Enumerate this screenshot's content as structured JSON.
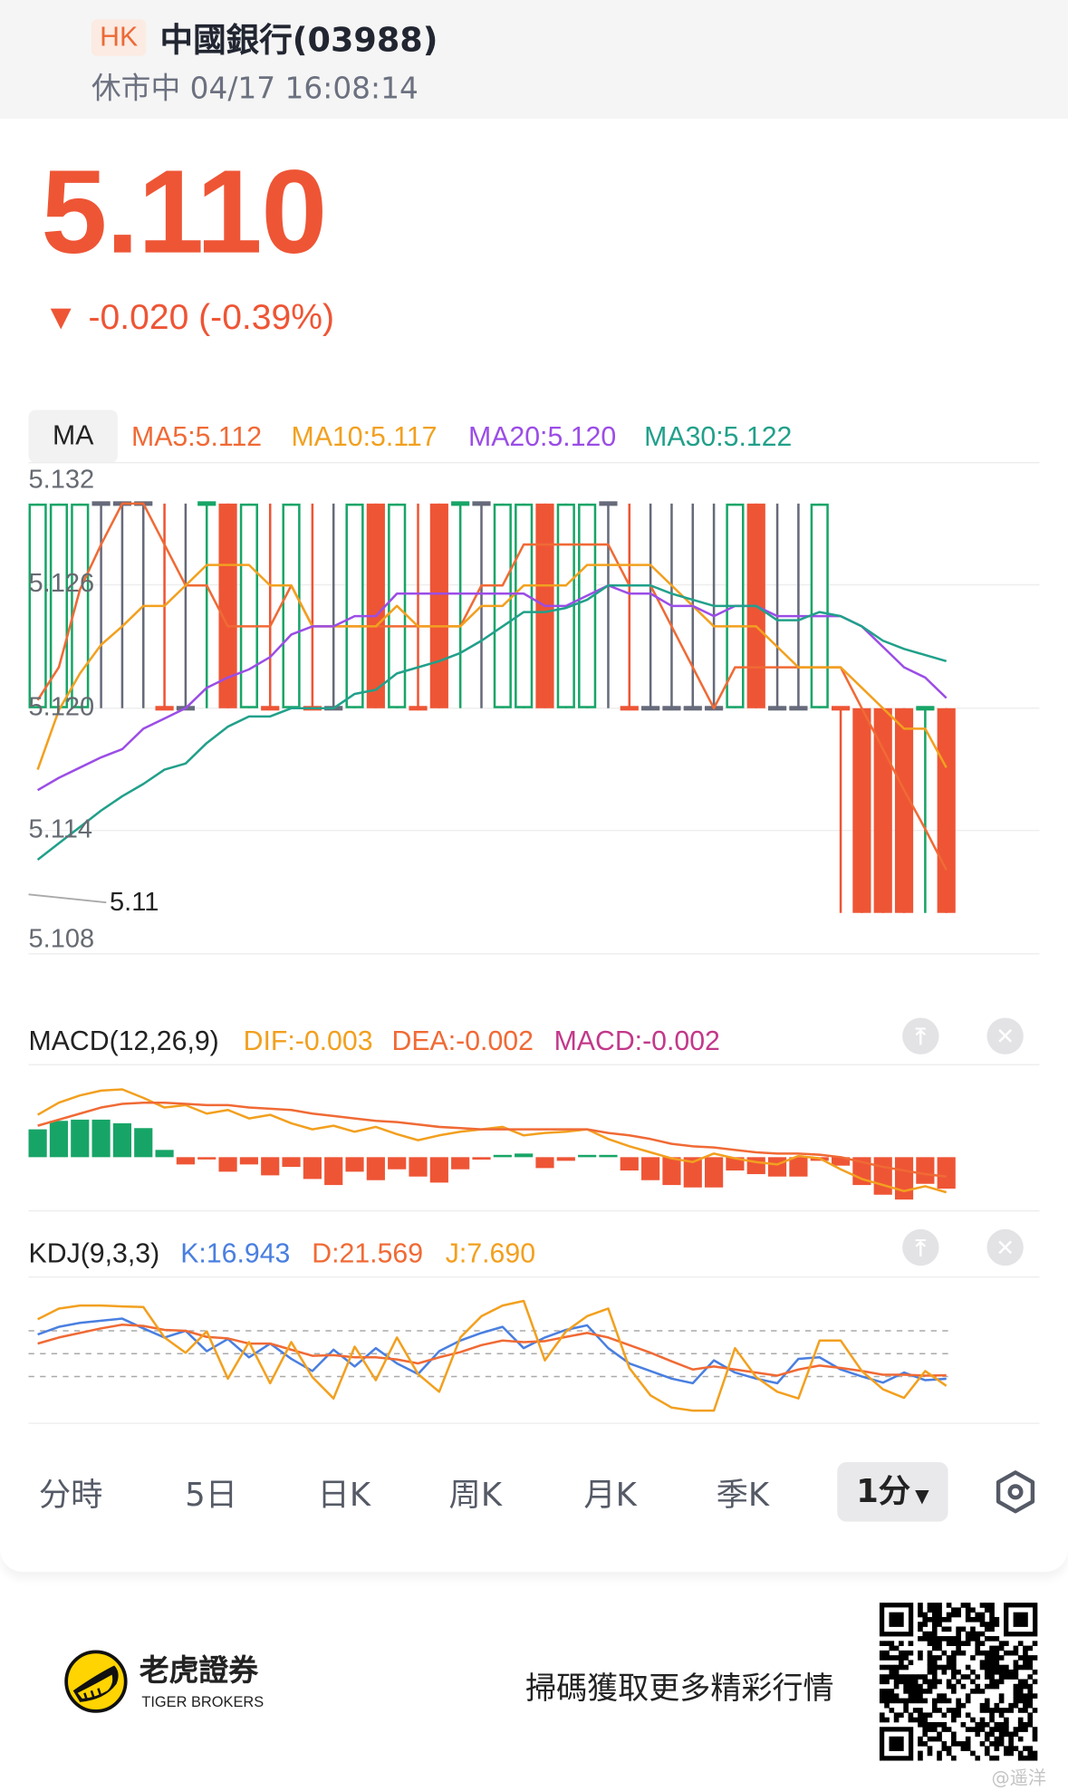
{
  "header": {
    "market_badge": "HK",
    "title": "中國銀行(03988)",
    "status": "休市中 04/17 16:08:14"
  },
  "quote": {
    "price": "5.110",
    "change": "▼ -0.020 (-0.39%)",
    "color": "#ee5535"
  },
  "ma_panel": {
    "tab_label": "MA",
    "labels": [
      {
        "text": "MA5:5.112",
        "color": "#f06a35"
      },
      {
        "text": "MA10:5.117",
        "color": "#f2a01f"
      },
      {
        "text": "MA20:5.120",
        "color": "#9b4de6"
      },
      {
        "text": "MA30:5.122",
        "color": "#21a08a"
      }
    ],
    "y_ticks": [
      "5.132",
      "5.126",
      "5.120",
      "5.114",
      "5.108"
    ],
    "min_marker": "5.11"
  },
  "macd_panel": {
    "title": "MACD(12,26,9)",
    "labels": [
      {
        "text": "DIF:-0.003",
        "color": "#f2a01f"
      },
      {
        "text": "DEA:-0.002",
        "color": "#f06a35"
      },
      {
        "text": "MACD:-0.002",
        "color": "#c2388a"
      }
    ],
    "pin_icon": "pin-top-icon",
    "close_icon": "close-icon"
  },
  "kdj_panel": {
    "title": "KDJ(9,3,3)",
    "labels": [
      {
        "text": "K:16.943",
        "color": "#4a7fe0"
      },
      {
        "text": "D:21.569",
        "color": "#f06a35"
      },
      {
        "text": "J:7.690",
        "color": "#f2a01f"
      }
    ],
    "pin_icon": "pin-top-icon",
    "close_icon": "close-icon"
  },
  "period_tabs": {
    "items": [
      "分時",
      "5日",
      "日K",
      "周K",
      "月K",
      "季K"
    ],
    "selected": "1分",
    "settings_icon": "settings-icon"
  },
  "footer": {
    "brand_cn": "老虎證券",
    "brand_en": "TIGER BROKERS",
    "promo": "掃碼獲取更多精彩行情",
    "watermark": "@遥洋"
  },
  "colors": {
    "up": "#17a567",
    "down": "#ee5535",
    "flat": "#666a7a"
  },
  "chart_data": [
    {
      "type": "candlestick",
      "ylim": [
        5.108,
        5.132
      ],
      "grid": true,
      "candles": [
        [
          5.12,
          5.13,
          5.12,
          5.13,
          "up"
        ],
        [
          5.12,
          5.13,
          5.12,
          5.13,
          "up"
        ],
        [
          5.12,
          5.13,
          5.12,
          5.13,
          "up"
        ],
        [
          5.13,
          5.13,
          5.12,
          5.13,
          "flat"
        ],
        [
          5.13,
          5.13,
          5.12,
          5.13,
          "flat"
        ],
        [
          5.13,
          5.13,
          5.12,
          5.13,
          "flat"
        ],
        [
          5.12,
          5.13,
          5.12,
          5.12,
          "down"
        ],
        [
          5.12,
          5.13,
          5.12,
          5.12,
          "flat"
        ],
        [
          5.13,
          5.13,
          5.12,
          5.13,
          "up"
        ],
        [
          5.13,
          5.13,
          5.12,
          5.12,
          "down"
        ],
        [
          5.12,
          5.13,
          5.12,
          5.13,
          "up"
        ],
        [
          5.12,
          5.13,
          5.12,
          5.12,
          "down"
        ],
        [
          5.12,
          5.13,
          5.12,
          5.13,
          "up"
        ],
        [
          5.12,
          5.13,
          5.12,
          5.12,
          "down"
        ],
        [
          5.12,
          5.13,
          5.12,
          5.12,
          "flat"
        ],
        [
          5.12,
          5.13,
          5.12,
          5.13,
          "up"
        ],
        [
          5.13,
          5.13,
          5.12,
          5.12,
          "down"
        ],
        [
          5.12,
          5.13,
          5.12,
          5.13,
          "up"
        ],
        [
          5.12,
          5.13,
          5.12,
          5.12,
          "down"
        ],
        [
          5.13,
          5.13,
          5.12,
          5.12,
          "down"
        ],
        [
          5.13,
          5.13,
          5.12,
          5.13,
          "up"
        ],
        [
          5.13,
          5.13,
          5.12,
          5.13,
          "flat"
        ],
        [
          5.12,
          5.13,
          5.12,
          5.13,
          "up"
        ],
        [
          5.12,
          5.13,
          5.12,
          5.13,
          "up"
        ],
        [
          5.13,
          5.13,
          5.12,
          5.12,
          "down"
        ],
        [
          5.12,
          5.13,
          5.12,
          5.13,
          "up"
        ],
        [
          5.12,
          5.13,
          5.12,
          5.13,
          "up"
        ],
        [
          5.13,
          5.13,
          5.12,
          5.13,
          "flat"
        ],
        [
          5.12,
          5.13,
          5.12,
          5.12,
          "down"
        ],
        [
          5.12,
          5.13,
          5.12,
          5.12,
          "flat"
        ],
        [
          5.12,
          5.13,
          5.12,
          5.12,
          "flat"
        ],
        [
          5.12,
          5.13,
          5.12,
          5.12,
          "flat"
        ],
        [
          5.12,
          5.13,
          5.12,
          5.12,
          "flat"
        ],
        [
          5.12,
          5.13,
          5.12,
          5.13,
          "up"
        ],
        [
          5.13,
          5.13,
          5.12,
          5.12,
          "down"
        ],
        [
          5.12,
          5.13,
          5.12,
          5.12,
          "flat"
        ],
        [
          5.12,
          5.13,
          5.12,
          5.12,
          "flat"
        ],
        [
          5.12,
          5.13,
          5.12,
          5.13,
          "up"
        ],
        [
          5.12,
          5.12,
          5.11,
          5.12,
          "down"
        ],
        [
          5.12,
          5.12,
          5.11,
          5.11,
          "down"
        ],
        [
          5.12,
          5.12,
          5.11,
          5.11,
          "down"
        ],
        [
          5.12,
          5.12,
          5.11,
          5.11,
          "down"
        ],
        [
          5.12,
          5.12,
          5.11,
          5.12,
          "up"
        ],
        [
          5.12,
          5.12,
          5.11,
          5.11,
          "down"
        ]
      ],
      "series": [
        {
          "name": "MA5",
          "color": "#f06a35",
          "values": [
            5.1204,
            5.122,
            5.1258,
            5.128,
            5.13,
            5.13,
            5.128,
            5.126,
            5.126,
            5.124,
            5.124,
            5.124,
            5.126,
            5.124,
            5.124,
            5.124,
            5.124,
            5.124,
            5.124,
            5.124,
            5.124,
            5.126,
            5.126,
            5.128,
            5.128,
            5.128,
            5.128,
            5.128,
            5.126,
            5.126,
            5.124,
            5.122,
            5.12,
            5.122,
            5.122,
            5.122,
            5.122,
            5.122,
            5.122,
            5.12,
            5.118,
            5.116,
            5.1141,
            5.1121
          ]
        },
        {
          "name": "MA10",
          "color": "#f2a01f",
          "values": [
            5.117,
            5.1199,
            5.1217,
            5.1231,
            5.124,
            5.125,
            5.125,
            5.126,
            5.127,
            5.127,
            5.127,
            5.126,
            5.126,
            5.124,
            5.124,
            5.124,
            5.124,
            5.125,
            5.124,
            5.124,
            5.124,
            5.125,
            5.125,
            5.126,
            5.126,
            5.126,
            5.127,
            5.127,
            5.127,
            5.127,
            5.126,
            5.125,
            5.124,
            5.124,
            5.124,
            5.123,
            5.122,
            5.122,
            5.122,
            5.121,
            5.12,
            5.119,
            5.119,
            5.1171
          ]
        },
        {
          "name": "MA20",
          "color": "#9b4de6",
          "values": [
            5.116,
            5.1166,
            5.1171,
            5.1176,
            5.118,
            5.119,
            5.1195,
            5.12,
            5.121,
            5.1215,
            5.1219,
            5.1225,
            5.1236,
            5.124,
            5.124,
            5.1245,
            5.1245,
            5.1256,
            5.1256,
            5.1256,
            5.1256,
            5.1256,
            5.1256,
            5.1256,
            5.125,
            5.125,
            5.1255,
            5.126,
            5.1256,
            5.1256,
            5.125,
            5.125,
            5.1245,
            5.125,
            5.125,
            5.1245,
            5.1245,
            5.1245,
            5.1245,
            5.124,
            5.123,
            5.122,
            5.1215,
            5.1205
          ]
        },
        {
          "name": "MA30",
          "color": "#21a08a",
          "values": [
            5.1126,
            5.1134,
            5.1142,
            5.115,
            5.1157,
            5.1163,
            5.117,
            5.1173,
            5.1183,
            5.1191,
            5.1196,
            5.1196,
            5.12,
            5.12,
            5.12,
            5.1207,
            5.1209,
            5.1217,
            5.122,
            5.1223,
            5.1227,
            5.1233,
            5.124,
            5.1247,
            5.1247,
            5.1249,
            5.1253,
            5.126,
            5.126,
            5.126,
            5.1256,
            5.1253,
            5.125,
            5.125,
            5.125,
            5.1243,
            5.1243,
            5.1247,
            5.1245,
            5.124,
            5.1233,
            5.1229,
            5.1226,
            5.1223
          ]
        }
      ]
    },
    {
      "type": "bar",
      "histogram": [
        0.0023,
        0.003,
        0.0031,
        0.0031,
        0.0028,
        0.0024,
        0.0006,
        -0.0006,
        -0.0001,
        -0.0012,
        -0.0006,
        -0.0015,
        -0.0008,
        -0.0018,
        -0.0023,
        -0.0012,
        -0.0019,
        -0.001,
        -0.0016,
        -0.0021,
        -0.001,
        -0.0002,
        0.0001,
        0.0003,
        -0.0009,
        -0.0003,
        0,
        0.0001,
        -0.0011,
        -0.0019,
        -0.0023,
        -0.0025,
        -0.0025,
        -0.0011,
        -0.0014,
        -0.0016,
        -0.0016,
        -0.0003,
        -0.0007,
        -0.0023,
        -0.0031,
        -0.0035,
        -0.0022,
        -0.0026
      ],
      "series": [
        {
          "name": "DIF",
          "color": "#f2a01f",
          "values": [
            0.0035,
            0.0045,
            0.0051,
            0.0055,
            0.0056,
            0.0049,
            0.0041,
            0.0043,
            0.0036,
            0.0039,
            0.0032,
            0.0035,
            0.0028,
            0.0023,
            0.0026,
            0.0021,
            0.0025,
            0.0019,
            0.0014,
            0.0018,
            0.0021,
            0.0023,
            0.0025,
            0.0018,
            0.002,
            0.0021,
            0.0023,
            0.0015,
            0.0009,
            0.0004,
            -0.0001,
            -0.0004,
            0.0003,
            -0.0001,
            -0.0004,
            -0.0006,
            0.0001,
            -0.0001,
            -0.001,
            -0.0018,
            -0.0023,
            -0.0028,
            -0.0024,
            -0.0029
          ]
        },
        {
          "name": "DEA",
          "color": "#f06a35",
          "values": [
            0.0026,
            0.0031,
            0.0036,
            0.0041,
            0.0044,
            0.0045,
            0.0045,
            0.0044,
            0.0043,
            0.0043,
            0.0041,
            0.004,
            0.0039,
            0.0036,
            0.0034,
            0.0032,
            0.003,
            0.0029,
            0.0027,
            0.0025,
            0.0024,
            0.0023,
            0.0023,
            0.0023,
            0.0023,
            0.0023,
            0.0023,
            0.002,
            0.0018,
            0.0015,
            0.0011,
            0.0009,
            0.0008,
            0.0006,
            0.0004,
            0.0003,
            0.0003,
            0.0002,
            0,
            -0.0004,
            -0.0008,
            -0.0011,
            -0.0014,
            -0.0016
          ]
        }
      ]
    },
    {
      "type": "line",
      "reference_lines": [
        80,
        50,
        20
      ],
      "series": [
        {
          "name": "K",
          "color": "#4a7fe0",
          "values": [
            75.2,
            85.2,
            90.4,
            93.2,
            96,
            83.2,
            71.2,
            80,
            53.2,
            69.2,
            45.2,
            63.2,
            43.2,
            27.2,
            55.2,
            33.2,
            57.2,
            37.2,
            23.2,
            53.2,
            67.2,
            77.2,
            85.2,
            57.2,
            71.2,
            81.2,
            87.2,
            57.2,
            37.2,
            27.2,
            17.2,
            11.2,
            41.2,
            25.2,
            17.2,
            11.2,
            43.2,
            45.2,
            29.2,
            20,
            12,
            25.2,
            15.2,
            16.943
          ]
        },
        {
          "name": "D",
          "color": "#f06a35",
          "values": [
            63.2,
            71.2,
            77.2,
            83.2,
            88,
            86.4,
            81.2,
            80,
            72,
            70,
            63.2,
            63.2,
            55.2,
            47.2,
            48,
            45.2,
            45.2,
            42.4,
            37.2,
            45.2,
            52,
            61.2,
            67.2,
            65.2,
            66.4,
            72,
            77.2,
            71.2,
            61.2,
            51.2,
            40,
            29.2,
            33.2,
            29.2,
            25.2,
            21.2,
            29.2,
            34.4,
            31.2,
            27.2,
            22.4,
            22.4,
            21.2,
            21.569
          ]
        },
        {
          "name": "J",
          "color": "#f2a01f",
          "values": [
            95.2,
            109.2,
            113.2,
            113.2,
            112,
            111.2,
            71.2,
            51.2,
            79.2,
            17.2,
            65.2,
            11.2,
            65.2,
            19.2,
            -8.8,
            59.2,
            15.2,
            71.2,
            23.2,
            0,
            71.2,
            99.2,
            113.2,
            119.2,
            41.2,
            79.2,
            99.2,
            109.2,
            31.2,
            -4.8,
            -20.8,
            -24.8,
            -24.8,
            57.2,
            19.2,
            0,
            -8.8,
            67.2,
            67.2,
            27.2,
            3.2,
            -8,
            27.2,
            7.69
          ]
        }
      ]
    }
  ]
}
